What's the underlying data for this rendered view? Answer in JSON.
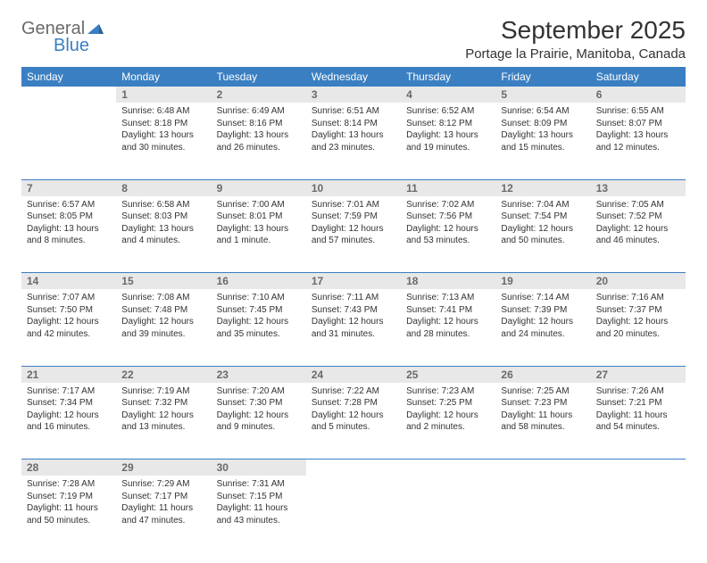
{
  "logo": {
    "word1": "General",
    "word2": "Blue"
  },
  "title": "September 2025",
  "location": "Portage la Prairie, Manitoba, Canada",
  "colors": {
    "accent": "#3a7fc2",
    "header_text": "#ffffff",
    "daynum_bg": "#e8e8e8",
    "daynum_text": "#6a6a6a",
    "body_text": "#333333",
    "logo_gray": "#6a6a6a"
  },
  "weekdays": [
    "Sunday",
    "Monday",
    "Tuesday",
    "Wednesday",
    "Thursday",
    "Friday",
    "Saturday"
  ],
  "weeks": [
    {
      "nums": [
        "",
        "1",
        "2",
        "3",
        "4",
        "5",
        "6"
      ],
      "cells": [
        null,
        {
          "sunrise": "Sunrise: 6:48 AM",
          "sunset": "Sunset: 8:18 PM",
          "day1": "Daylight: 13 hours",
          "day2": "and 30 minutes."
        },
        {
          "sunrise": "Sunrise: 6:49 AM",
          "sunset": "Sunset: 8:16 PM",
          "day1": "Daylight: 13 hours",
          "day2": "and 26 minutes."
        },
        {
          "sunrise": "Sunrise: 6:51 AM",
          "sunset": "Sunset: 8:14 PM",
          "day1": "Daylight: 13 hours",
          "day2": "and 23 minutes."
        },
        {
          "sunrise": "Sunrise: 6:52 AM",
          "sunset": "Sunset: 8:12 PM",
          "day1": "Daylight: 13 hours",
          "day2": "and 19 minutes."
        },
        {
          "sunrise": "Sunrise: 6:54 AM",
          "sunset": "Sunset: 8:09 PM",
          "day1": "Daylight: 13 hours",
          "day2": "and 15 minutes."
        },
        {
          "sunrise": "Sunrise: 6:55 AM",
          "sunset": "Sunset: 8:07 PM",
          "day1": "Daylight: 13 hours",
          "day2": "and 12 minutes."
        }
      ]
    },
    {
      "nums": [
        "7",
        "8",
        "9",
        "10",
        "11",
        "12",
        "13"
      ],
      "cells": [
        {
          "sunrise": "Sunrise: 6:57 AM",
          "sunset": "Sunset: 8:05 PM",
          "day1": "Daylight: 13 hours",
          "day2": "and 8 minutes."
        },
        {
          "sunrise": "Sunrise: 6:58 AM",
          "sunset": "Sunset: 8:03 PM",
          "day1": "Daylight: 13 hours",
          "day2": "and 4 minutes."
        },
        {
          "sunrise": "Sunrise: 7:00 AM",
          "sunset": "Sunset: 8:01 PM",
          "day1": "Daylight: 13 hours",
          "day2": "and 1 minute."
        },
        {
          "sunrise": "Sunrise: 7:01 AM",
          "sunset": "Sunset: 7:59 PM",
          "day1": "Daylight: 12 hours",
          "day2": "and 57 minutes."
        },
        {
          "sunrise": "Sunrise: 7:02 AM",
          "sunset": "Sunset: 7:56 PM",
          "day1": "Daylight: 12 hours",
          "day2": "and 53 minutes."
        },
        {
          "sunrise": "Sunrise: 7:04 AM",
          "sunset": "Sunset: 7:54 PM",
          "day1": "Daylight: 12 hours",
          "day2": "and 50 minutes."
        },
        {
          "sunrise": "Sunrise: 7:05 AM",
          "sunset": "Sunset: 7:52 PM",
          "day1": "Daylight: 12 hours",
          "day2": "and 46 minutes."
        }
      ]
    },
    {
      "nums": [
        "14",
        "15",
        "16",
        "17",
        "18",
        "19",
        "20"
      ],
      "cells": [
        {
          "sunrise": "Sunrise: 7:07 AM",
          "sunset": "Sunset: 7:50 PM",
          "day1": "Daylight: 12 hours",
          "day2": "and 42 minutes."
        },
        {
          "sunrise": "Sunrise: 7:08 AM",
          "sunset": "Sunset: 7:48 PM",
          "day1": "Daylight: 12 hours",
          "day2": "and 39 minutes."
        },
        {
          "sunrise": "Sunrise: 7:10 AM",
          "sunset": "Sunset: 7:45 PM",
          "day1": "Daylight: 12 hours",
          "day2": "and 35 minutes."
        },
        {
          "sunrise": "Sunrise: 7:11 AM",
          "sunset": "Sunset: 7:43 PM",
          "day1": "Daylight: 12 hours",
          "day2": "and 31 minutes."
        },
        {
          "sunrise": "Sunrise: 7:13 AM",
          "sunset": "Sunset: 7:41 PM",
          "day1": "Daylight: 12 hours",
          "day2": "and 28 minutes."
        },
        {
          "sunrise": "Sunrise: 7:14 AM",
          "sunset": "Sunset: 7:39 PM",
          "day1": "Daylight: 12 hours",
          "day2": "and 24 minutes."
        },
        {
          "sunrise": "Sunrise: 7:16 AM",
          "sunset": "Sunset: 7:37 PM",
          "day1": "Daylight: 12 hours",
          "day2": "and 20 minutes."
        }
      ]
    },
    {
      "nums": [
        "21",
        "22",
        "23",
        "24",
        "25",
        "26",
        "27"
      ],
      "cells": [
        {
          "sunrise": "Sunrise: 7:17 AM",
          "sunset": "Sunset: 7:34 PM",
          "day1": "Daylight: 12 hours",
          "day2": "and 16 minutes."
        },
        {
          "sunrise": "Sunrise: 7:19 AM",
          "sunset": "Sunset: 7:32 PM",
          "day1": "Daylight: 12 hours",
          "day2": "and 13 minutes."
        },
        {
          "sunrise": "Sunrise: 7:20 AM",
          "sunset": "Sunset: 7:30 PM",
          "day1": "Daylight: 12 hours",
          "day2": "and 9 minutes."
        },
        {
          "sunrise": "Sunrise: 7:22 AM",
          "sunset": "Sunset: 7:28 PM",
          "day1": "Daylight: 12 hours",
          "day2": "and 5 minutes."
        },
        {
          "sunrise": "Sunrise: 7:23 AM",
          "sunset": "Sunset: 7:25 PM",
          "day1": "Daylight: 12 hours",
          "day2": "and 2 minutes."
        },
        {
          "sunrise": "Sunrise: 7:25 AM",
          "sunset": "Sunset: 7:23 PM",
          "day1": "Daylight: 11 hours",
          "day2": "and 58 minutes."
        },
        {
          "sunrise": "Sunrise: 7:26 AM",
          "sunset": "Sunset: 7:21 PM",
          "day1": "Daylight: 11 hours",
          "day2": "and 54 minutes."
        }
      ]
    },
    {
      "nums": [
        "28",
        "29",
        "30",
        "",
        "",
        "",
        ""
      ],
      "cells": [
        {
          "sunrise": "Sunrise: 7:28 AM",
          "sunset": "Sunset: 7:19 PM",
          "day1": "Daylight: 11 hours",
          "day2": "and 50 minutes."
        },
        {
          "sunrise": "Sunrise: 7:29 AM",
          "sunset": "Sunset: 7:17 PM",
          "day1": "Daylight: 11 hours",
          "day2": "and 47 minutes."
        },
        {
          "sunrise": "Sunrise: 7:31 AM",
          "sunset": "Sunset: 7:15 PM",
          "day1": "Daylight: 11 hours",
          "day2": "and 43 minutes."
        },
        null,
        null,
        null,
        null
      ]
    }
  ]
}
